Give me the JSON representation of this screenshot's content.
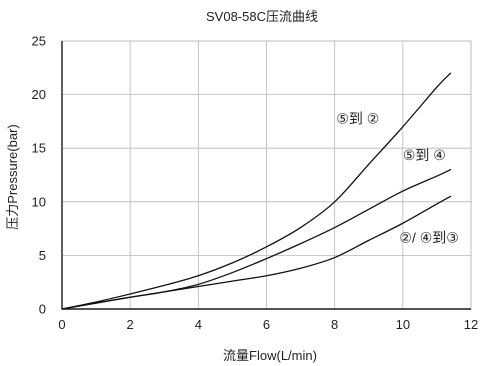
{
  "chart_data": {
    "type": "line",
    "title": "SV08-58C压流曲线",
    "xlabel": "流量Flow(L/min)",
    "ylabel": "压力Pressure(bar)",
    "xlim": [
      0,
      12
    ],
    "ylim": [
      0,
      25
    ],
    "xticks": [
      0,
      2,
      4,
      6,
      8,
      10,
      12
    ],
    "yticks": [
      0,
      5,
      10,
      15,
      20,
      25
    ],
    "grid": true,
    "series": [
      {
        "name": "⑤到 ②",
        "x": [
          0,
          1,
          2,
          3,
          4,
          5,
          6,
          7,
          8,
          9,
          10,
          11,
          11.4
        ],
        "y": [
          0,
          0.65,
          1.4,
          2.2,
          3.1,
          4.3,
          5.8,
          7.6,
          10.0,
          13.5,
          17.0,
          20.7,
          22.0
        ]
      },
      {
        "name": "⑤到 ④",
        "x": [
          0,
          1,
          2,
          3,
          4,
          5,
          6,
          7,
          8,
          9,
          10,
          11,
          11.4
        ],
        "y": [
          0,
          0.55,
          1.1,
          1.6,
          2.3,
          3.4,
          4.7,
          6.1,
          7.6,
          9.3,
          11.0,
          12.4,
          13.0
        ]
      },
      {
        "name": "②/ ④到③",
        "x": [
          0,
          1,
          2,
          3,
          4,
          5,
          6,
          7,
          8,
          9,
          10,
          11,
          11.4
        ],
        "y": [
          0,
          0.55,
          1.1,
          1.6,
          2.1,
          2.6,
          3.1,
          3.8,
          4.8,
          6.4,
          8.0,
          9.8,
          10.5
        ]
      }
    ],
    "annotations": [
      {
        "text": "⑤到 ②",
        "x": 8.05,
        "y": 17.3
      },
      {
        "text": "⑤到 ④",
        "x": 10.0,
        "y": 13.9
      },
      {
        "text": "②/ ④到③",
        "x": 9.9,
        "y": 6.2
      }
    ]
  }
}
